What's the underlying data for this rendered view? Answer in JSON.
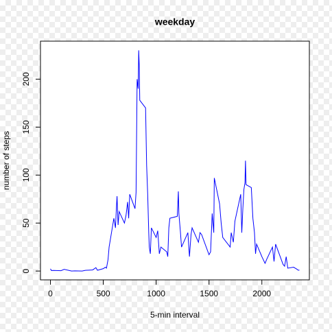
{
  "chart_data": {
    "type": "line",
    "title": "weekday",
    "x_label": "5-min interval",
    "y_label": "number of steps",
    "x": [
      0,
      10,
      30,
      100,
      130,
      200,
      230,
      300,
      330,
      400,
      430,
      445,
      500,
      520,
      530,
      545,
      555,
      600,
      615,
      625,
      630,
      640,
      650,
      700,
      715,
      730,
      740,
      750,
      800,
      810,
      820,
      830,
      835,
      840,
      845,
      900,
      910,
      920,
      930,
      935,
      945,
      955,
      1000,
      1015,
      1030,
      1045,
      1100,
      1110,
      1120,
      1130,
      1200,
      1210,
      1215,
      1230,
      1240,
      1300,
      1315,
      1330,
      1340,
      1400,
      1415,
      1430,
      1500,
      1515,
      1530,
      1545,
      1550,
      1600,
      1615,
      1630,
      1700,
      1710,
      1730,
      1745,
      1800,
      1810,
      1820,
      1830,
      1840,
      1845,
      1850,
      1900,
      1915,
      1930,
      1940,
      1950,
      2000,
      2030,
      2045,
      2100,
      2115,
      2130,
      2200,
      2215,
      2230,
      2245,
      2300,
      2330,
      2345,
      2355
    ],
    "series": [
      {
        "name": "steps",
        "color": "#0000ff",
        "values": [
          2.3,
          0.5,
          0.6,
          0.4,
          1.8,
          0,
          0.2,
          0,
          0.7,
          1.2,
          3.5,
          0.8,
          2.5,
          4,
          3,
          12,
          25,
          55,
          45,
          68,
          78,
          48,
          62,
          50,
          58,
          72,
          55,
          80,
          65,
          82,
          200,
          190,
          230,
          215,
          178,
          170,
          110,
          80,
          40,
          25,
          18,
          45,
          35,
          42,
          18,
          25,
          20,
          15,
          45,
          55,
          57,
          83,
          60,
          40,
          25,
          40,
          15,
          38,
          45,
          30,
          40,
          38,
          17,
          20,
          60,
          40,
          97,
          70,
          50,
          35,
          25,
          40,
          30,
          52,
          80,
          40,
          65,
          85,
          92,
          115,
          90,
          87,
          55,
          40,
          18,
          28,
          15,
          8,
          12,
          25,
          10,
          28,
          7,
          5,
          15,
          3,
          4,
          2,
          0.8,
          1
        ]
      }
    ],
    "xlim": [
      -94.2,
      2449.2
    ],
    "ylim": [
      -9.2,
      239.6
    ],
    "xticks": [
      0,
      500,
      1000,
      1500,
      2000
    ],
    "yticks": [
      0,
      50,
      100,
      150,
      200
    ]
  }
}
